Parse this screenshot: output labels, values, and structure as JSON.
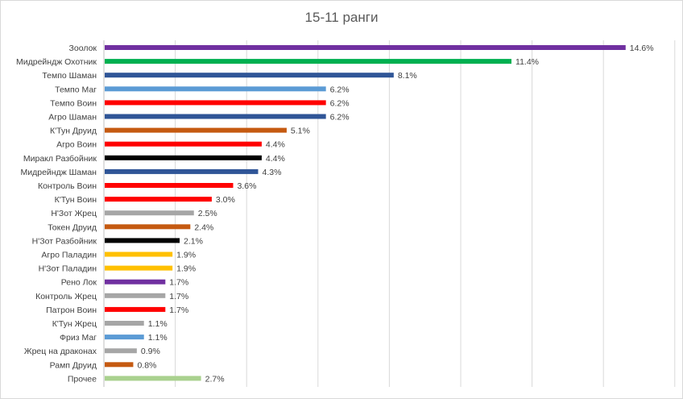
{
  "chart_data": {
    "type": "bar",
    "orientation": "horizontal",
    "title": "15-11 ранги",
    "xlabel": "",
    "ylabel": "",
    "xlim": [
      0,
      16
    ],
    "grid": true,
    "legend": "none",
    "value_format": "percent_1dp",
    "categories": [
      "Зоолок",
      "Мидрейндж Охотник",
      "Темпо Шаман",
      "Темпо Маг",
      "Темпо Воин",
      "Агро Шаман",
      "К'Тун Друид",
      "Агро Воин",
      "Миракл Разбойник",
      "Мидрейндж Шаман",
      "Контроль Воин",
      "К'Тун Воин",
      "Н'Зот Жрец",
      "Токен Друид",
      "Н'Зот Разбойник",
      "Агро Паладин",
      "Н'Зот Паладин",
      "Рено Лок",
      "Контроль Жрец",
      "Патрон Воин",
      "К'Тун Жрец",
      "Фриз Маг",
      "Жрец на драконах",
      "Рамп Друид",
      "Прочее"
    ],
    "values": [
      14.6,
      11.4,
      8.1,
      6.2,
      6.2,
      6.2,
      5.1,
      4.4,
      4.4,
      4.3,
      3.6,
      3.0,
      2.5,
      2.4,
      2.1,
      1.9,
      1.9,
      1.7,
      1.7,
      1.7,
      1.1,
      1.1,
      0.9,
      0.8,
      2.7
    ],
    "value_labels": [
      "14.6%",
      "11.4%",
      "8.1%",
      "6.2%",
      "6.2%",
      "6.2%",
      "5.1%",
      "4.4%",
      "4.4%",
      "4.3%",
      "3.6%",
      "3.0%",
      "2.5%",
      "2.4%",
      "2.1%",
      "1.9%",
      "1.9%",
      "1.7%",
      "1.7%",
      "1.7%",
      "1.1%",
      "1.1%",
      "0.9%",
      "0.8%",
      "2.7%"
    ],
    "colors": [
      "#7030a0",
      "#00b050",
      "#2f5597",
      "#5b9bd5",
      "#ff0000",
      "#2f5597",
      "#c55a11",
      "#ff0000",
      "#000000",
      "#2f5597",
      "#ff0000",
      "#ff0000",
      "#a6a6a6",
      "#c55a11",
      "#000000",
      "#ffc000",
      "#ffc000",
      "#7030a0",
      "#a6a6a6",
      "#ff0000",
      "#a6a6a6",
      "#5b9bd5",
      "#a6a6a6",
      "#c55a11",
      "#a9d18e"
    ],
    "gridline_color": "#d9d9d9"
  }
}
